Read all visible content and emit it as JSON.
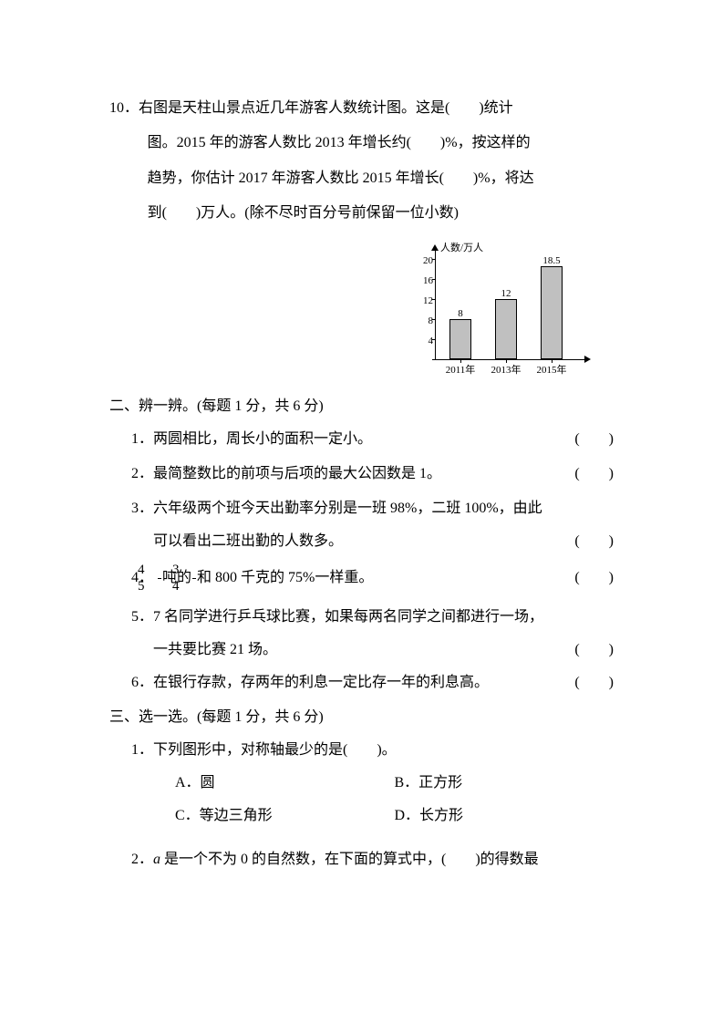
{
  "q10": {
    "number": "10．",
    "text_line1": "右图是天柱山景点近几年游客人数统计图。这是(　　)统计",
    "text_line2": "图。2015 年的游客人数比 2013 年增长约(　　)%，按这样的",
    "text_line3": "趋势，你估计 2017 年游客人数比 2015 年增长(　　)%，将达",
    "text_line4": "到(　　)万人。(除不尽时百分号前保留一位小数)"
  },
  "chart": {
    "type": "bar",
    "y_title": "人数/万人",
    "categories": [
      "2011年",
      "2013年",
      "2015年"
    ],
    "values": [
      8,
      12,
      18.5
    ],
    "value_labels": [
      "8",
      "12",
      "18.5"
    ],
    "ylim": [
      0,
      20
    ],
    "yticks": [
      0,
      4,
      8,
      12,
      16,
      20
    ],
    "bar_color": "#c0c0c0",
    "border_color": "#000000",
    "background_color": "#ffffff",
    "bar_width": 0.45
  },
  "section2": {
    "heading": "二、辨一辨。(每题 1 分，共 6 分)",
    "items": [
      {
        "num": "1．",
        "text": "两圆相比，周长小的面积一定小。"
      },
      {
        "num": "2．",
        "text": "最简整数比的前项与后项的最大公因数是 1。"
      },
      {
        "num": "3．",
        "text": "六年级两个班今天出勤率分别是一班 98%，二班 100%，由此",
        "text2": "可以看出二班出勤的人数多。"
      },
      {
        "num": "4．",
        "frac1_num": "4",
        "frac1_den": "5",
        "mid1": "吨的",
        "frac2_num": "3",
        "frac2_den": "4",
        "post": "和 800 千克的 75%一样重。"
      },
      {
        "num": "5．",
        "text": "7 名同学进行乒乓球比赛，如果每两名同学之间都进行一场，",
        "text2": "一共要比赛 21 场。"
      },
      {
        "num": "6．",
        "text": "在银行存款，存两年的利息一定比存一年的利息高。"
      }
    ],
    "paren": "(　　)"
  },
  "section3": {
    "heading": "三、选一选。(每题 1 分，共 6 分)",
    "q1": {
      "num": "1．",
      "stem": "下列图形中，对称轴最少的是(　　)。",
      "opts": {
        "A": "A．圆",
        "B": "B．正方形",
        "C": "C．等边三角形",
        "D": "D．长方形"
      }
    },
    "q2": {
      "num": "2．",
      "stem_pre": "是一个不为 0 的自然数，在下面的算式中，(　　)的得数最",
      "var": "a "
    }
  }
}
